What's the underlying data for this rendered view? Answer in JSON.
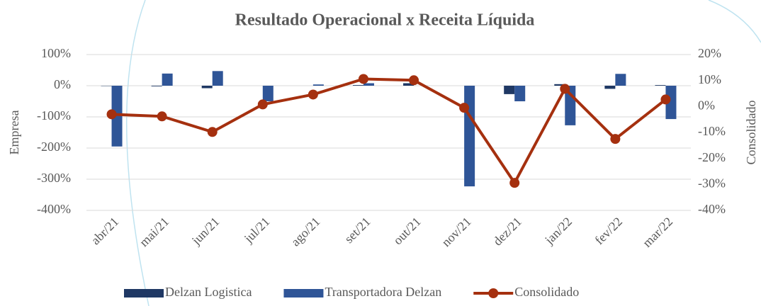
{
  "chart_data": {
    "type": "bar-line",
    "title": "Resultado Operacional x Receita Líquida",
    "ylabel": "Empresa",
    "y2label": "Consolidado",
    "categories": [
      "abr/21",
      "mai/21",
      "jun/21",
      "jul/21",
      "ago/21",
      "set/21",
      "out/21",
      "nov/21",
      "dez/21",
      "jan/22",
      "fev/22",
      "mar/22"
    ],
    "series": [
      {
        "name": "Delzan Logistica",
        "type": "bar",
        "color": "#1f3864",
        "axis": "y",
        "values": [
          -1,
          -2,
          -8,
          0,
          0,
          2,
          8,
          0,
          -27,
          5,
          -10,
          2
        ]
      },
      {
        "name": "Transportadora Delzan",
        "type": "bar",
        "color": "#2f5597",
        "axis": "y",
        "values": [
          -195,
          39,
          47,
          -50,
          4,
          8,
          0,
          -323,
          -50,
          -127,
          38,
          -107
        ]
      },
      {
        "name": "Consolidado",
        "type": "line",
        "color": "#a5300f",
        "axis": "y2",
        "values": [
          -3,
          -3.8,
          -9.8,
          0.8,
          4.6,
          10.6,
          10.1,
          -0.5,
          -29.4,
          6.8,
          -12.5,
          2.7
        ]
      }
    ],
    "ylim": [
      -400,
      100
    ],
    "yticks": [
      {
        "value": 100,
        "label": "100%"
      },
      {
        "value": 0,
        "label": "0%"
      },
      {
        "value": -100,
        "label": "-100%"
      },
      {
        "value": -200,
        "label": "-200%"
      },
      {
        "value": -300,
        "label": "-300%"
      },
      {
        "value": -400,
        "label": "-400%"
      }
    ],
    "y2lim": [
      -40,
      20
    ],
    "y2ticks": [
      {
        "value": 20,
        "label": "20%"
      },
      {
        "value": 10,
        "label": "10%"
      },
      {
        "value": 0,
        "label": "0%"
      },
      {
        "value": -10,
        "label": "-10%"
      },
      {
        "value": -20,
        "label": "-20%"
      },
      {
        "value": -30,
        "label": "-30%"
      },
      {
        "value": -40,
        "label": "-40%"
      }
    ],
    "grid": true,
    "legend": "bottom"
  }
}
